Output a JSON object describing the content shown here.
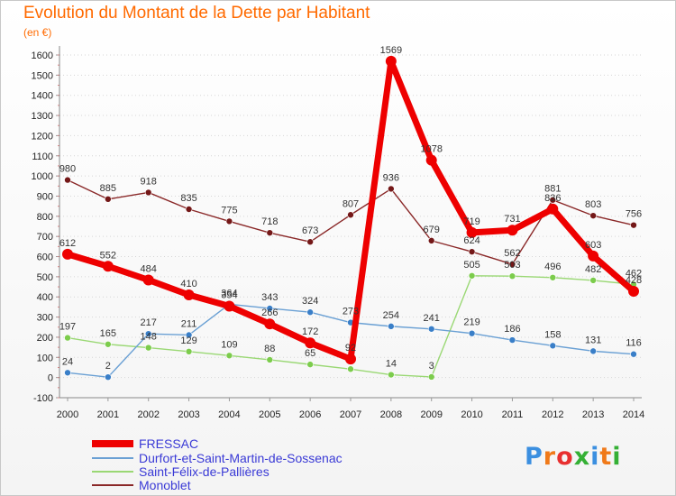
{
  "title": "Evolution du Montant de la Dette par Habitant",
  "subtitle": "(en €)",
  "logo": {
    "text": "Proxiti",
    "letter_colors": [
      "#3b8fe0",
      "#f07a1a",
      "#e83030",
      "#35b035",
      "#3b8fe0",
      "#f07a1a",
      "#35b035"
    ]
  },
  "chart_data": {
    "type": "line",
    "x": [
      "2000",
      "2001",
      "2002",
      "2003",
      "2004",
      "2005",
      "2006",
      "2007",
      "2008",
      "2009",
      "2010",
      "2011",
      "2012",
      "2013",
      "2014"
    ],
    "ylim": [
      -100,
      1600
    ],
    "yticks": [
      -100,
      0,
      100,
      200,
      300,
      400,
      500,
      600,
      700,
      800,
      900,
      1000,
      1100,
      1200,
      1300,
      1400,
      1500,
      1600
    ],
    "grid": "horizontal dotted",
    "legend_position": "bottom-left",
    "series": [
      {
        "name": "FRESSAC",
        "color": "#ee0000",
        "marker_color": "#ee0000",
        "width": 7,
        "marker_radius": 6,
        "values": [
          612,
          552,
          484,
          410,
          354,
          266,
          172,
          92,
          1569,
          1078,
          719,
          731,
          836,
          603,
          428
        ],
        "labels": [
          "612",
          "552",
          "484",
          "410",
          "354",
          "266",
          "172",
          "92",
          "1569",
          "1078",
          "719",
          "731",
          "836",
          "603",
          "428"
        ]
      },
      {
        "name": "Durfort-et-Saint-Martin-de-Sossenac",
        "color": "#6aa0d4",
        "marker_color": "#3a7fc8",
        "width": 1.4,
        "marker_radius": 3.5,
        "values": [
          24,
          2,
          217,
          211,
          364,
          343,
          324,
          273,
          254,
          241,
          219,
          186,
          158,
          131,
          116
        ],
        "labels": [
          "24",
          "2",
          "217",
          "211",
          "364",
          "343",
          "324",
          "273",
          "254",
          "241",
          "219",
          "186",
          "158",
          "131",
          "116"
        ]
      },
      {
        "name": "Saint-Félix-de-Pallières",
        "color": "#9ad874",
        "marker_color": "#7ccc4c",
        "width": 1.4,
        "marker_radius": 3.5,
        "values": [
          197,
          165,
          148,
          129,
          109,
          88,
          65,
          42,
          14,
          3,
          505,
          503,
          496,
          482,
          462
        ],
        "labels": [
          "197",
          "165",
          "148",
          "129",
          "109",
          "88",
          "65",
          "",
          "14",
          "3",
          "505",
          "503",
          "496",
          "482",
          "462"
        ]
      },
      {
        "name": "Monoblet",
        "color": "#8a2828",
        "marker_color": "#741818",
        "width": 1.4,
        "marker_radius": 3.5,
        "values": [
          980,
          885,
          918,
          835,
          775,
          718,
          673,
          807,
          936,
          679,
          624,
          562,
          881,
          803,
          756
        ],
        "labels": [
          "980",
          "885",
          "918",
          "835",
          "775",
          "718",
          "673",
          "807",
          "936",
          "679",
          "624",
          "562",
          "881",
          "803",
          "756"
        ]
      }
    ]
  }
}
